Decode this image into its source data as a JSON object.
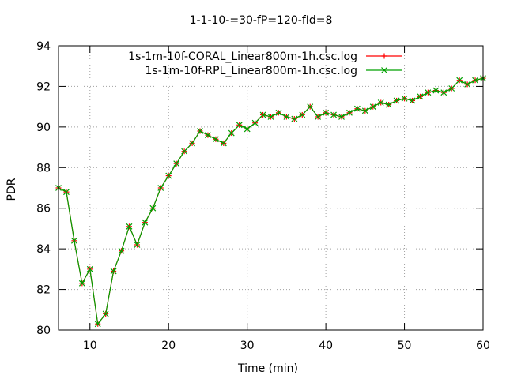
{
  "chart_data": {
    "type": "line",
    "title": "1-1-10-=30-fP=120-fId=8",
    "xlabel": "Time (min)",
    "ylabel": "PDR",
    "xlim": [
      6,
      60
    ],
    "ylim": [
      80,
      94
    ],
    "xticks": [
      10,
      20,
      30,
      40,
      50,
      60
    ],
    "yticks": [
      80,
      82,
      84,
      86,
      88,
      90,
      92,
      94
    ],
    "grid": true,
    "legend_position": "top-right",
    "x": [
      6,
      7,
      8,
      9,
      10,
      11,
      12,
      13,
      14,
      15,
      16,
      17,
      18,
      19,
      20,
      21,
      22,
      23,
      24,
      25,
      26,
      27,
      28,
      29,
      30,
      31,
      32,
      33,
      34,
      35,
      36,
      37,
      38,
      39,
      40,
      41,
      42,
      43,
      44,
      45,
      46,
      47,
      48,
      49,
      50,
      51,
      52,
      53,
      54,
      55,
      56,
      57,
      58,
      59,
      60
    ],
    "series": [
      {
        "name": "1s-1m-10f-CORAL_Linear800m-1h.csc.log",
        "color": "#ff0000",
        "marker": "plus",
        "values": [
          87.0,
          86.8,
          84.4,
          82.3,
          83.0,
          80.3,
          80.8,
          82.9,
          83.9,
          85.1,
          84.2,
          85.3,
          86.0,
          87.0,
          87.6,
          88.2,
          88.8,
          89.2,
          89.8,
          89.6,
          89.4,
          89.2,
          89.7,
          90.1,
          89.9,
          90.2,
          90.6,
          90.5,
          90.7,
          90.5,
          90.4,
          90.6,
          91.0,
          90.5,
          90.7,
          90.6,
          90.5,
          90.7,
          90.9,
          90.8,
          91.0,
          91.2,
          91.1,
          91.3,
          91.4,
          91.3,
          91.5,
          91.7,
          91.8,
          91.7,
          91.9,
          92.3,
          92.1,
          92.3,
          92.4
        ]
      },
      {
        "name": "1s-1m-10f-RPL_Linear800m-1h.csc.log",
        "color": "#00a000",
        "marker": "x",
        "values": [
          87.0,
          86.8,
          84.4,
          82.3,
          83.0,
          80.3,
          80.8,
          82.9,
          83.9,
          85.1,
          84.2,
          85.3,
          86.0,
          87.0,
          87.6,
          88.2,
          88.8,
          89.2,
          89.8,
          89.6,
          89.4,
          89.2,
          89.7,
          90.1,
          89.9,
          90.2,
          90.6,
          90.5,
          90.7,
          90.5,
          90.4,
          90.6,
          91.0,
          90.5,
          90.7,
          90.6,
          90.5,
          90.7,
          90.9,
          90.8,
          91.0,
          91.2,
          91.1,
          91.3,
          91.4,
          91.3,
          91.5,
          91.7,
          91.8,
          91.7,
          91.9,
          92.3,
          92.1,
          92.3,
          92.4
        ]
      }
    ]
  }
}
